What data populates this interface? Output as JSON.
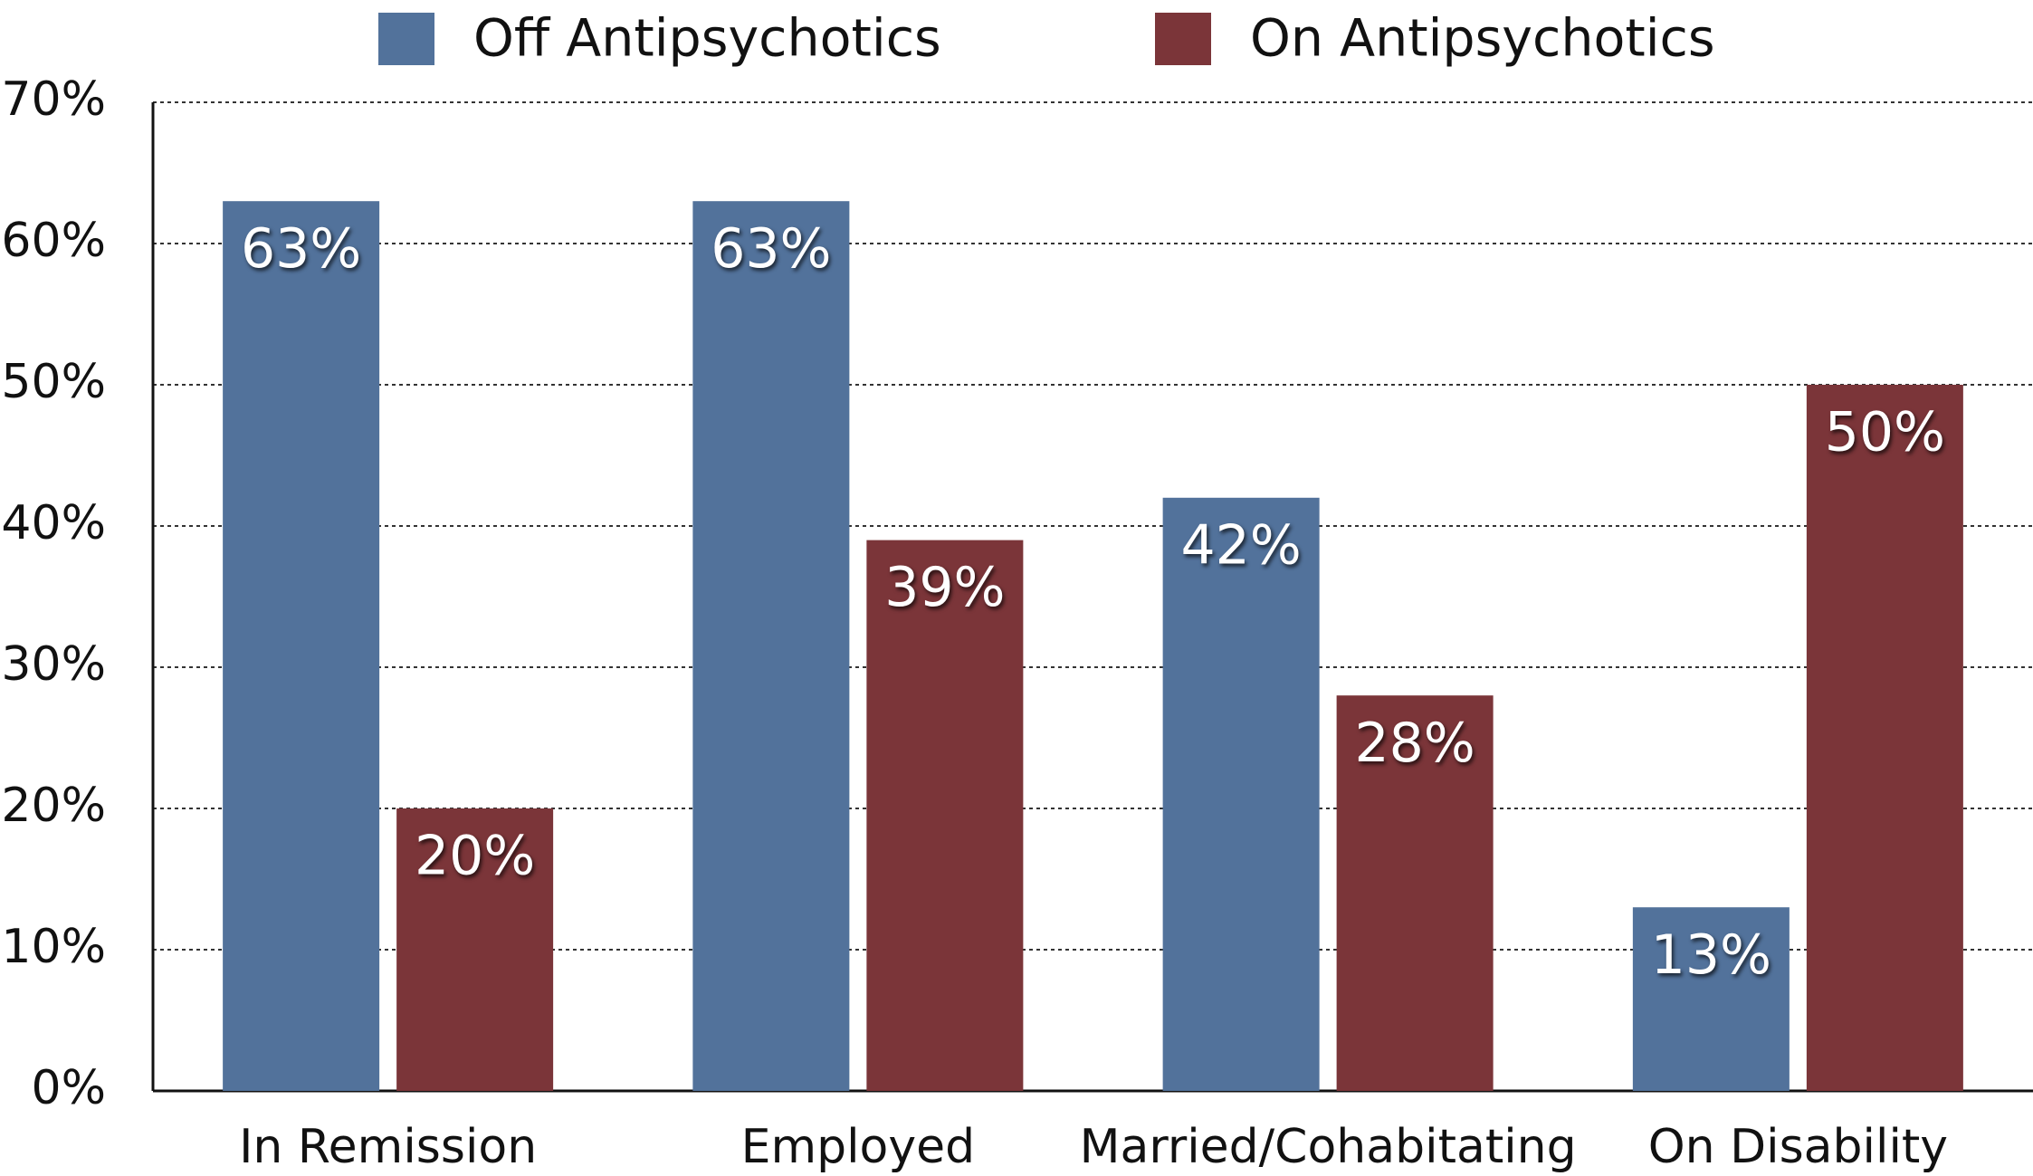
{
  "chart_data": {
    "type": "bar",
    "categories": [
      "In Remission",
      "Employed",
      "Married/Cohabitating",
      "On Disability"
    ],
    "series": [
      {
        "name": "Off Antipsychotics",
        "color": "#52729b",
        "values": [
          63,
          63,
          42,
          13
        ],
        "value_labels": [
          "63%",
          "63%",
          "42%",
          "13%"
        ]
      },
      {
        "name": "On Antipsychotics",
        "color": "#7b3539",
        "values": [
          20,
          39,
          28,
          50
        ],
        "value_labels": [
          "20%",
          "39%",
          "28%",
          "50%"
        ]
      }
    ],
    "ylim": [
      0,
      70
    ],
    "yticks": [
      {
        "value": 0,
        "label": "0%"
      },
      {
        "value": 10,
        "label": "10%"
      },
      {
        "value": 20,
        "label": "20%"
      },
      {
        "value": 30,
        "label": "30%"
      },
      {
        "value": 40,
        "label": "40%"
      },
      {
        "value": 50,
        "label": "50%"
      },
      {
        "value": 60,
        "label": "60%"
      },
      {
        "value": 70,
        "label": "70%"
      }
    ],
    "grid": true,
    "legend": "top"
  }
}
